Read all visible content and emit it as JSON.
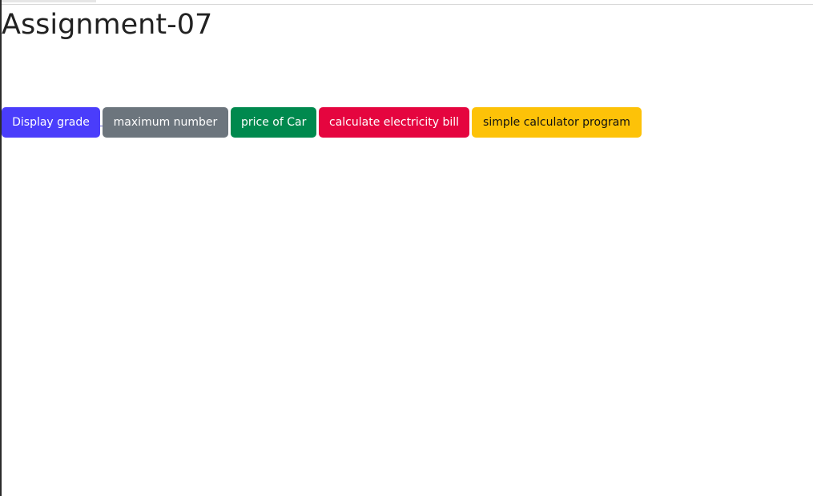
{
  "page": {
    "title": "Assignment-07"
  },
  "buttons": [
    {
      "label": "Display grade",
      "color": "#4a3dfb"
    },
    {
      "label": "maximum number",
      "color": "#6c757d"
    },
    {
      "label": "price of Car",
      "color": "#00894e"
    },
    {
      "label": "calculate electricity bill",
      "color": "#e5053f"
    },
    {
      "label": "simple calculator program",
      "color": "#fdc208"
    }
  ]
}
